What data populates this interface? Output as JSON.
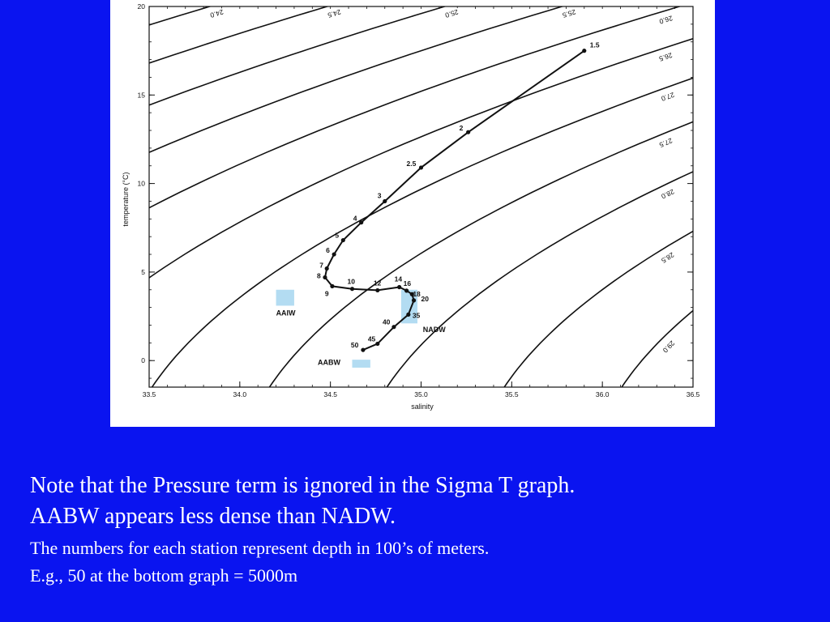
{
  "colors": {
    "background": "#0a14f0",
    "panel": "#ffffff",
    "ink": "#111111",
    "water_mass_box": "#b3dcf2",
    "caption_text": "#ffffff"
  },
  "chart_data": {
    "type": "line",
    "subtype": "temperature-salinity diagram with sigma-t isopycnals",
    "xlabel": "salinity",
    "ylabel": "temperature (°C)",
    "xlim": [
      33.5,
      36.5
    ],
    "ylim": [
      -1.5,
      20
    ],
    "x_ticks": [
      "33.5",
      "34.0",
      "34.5",
      "35.0",
      "35.5",
      "36.0",
      "36.5"
    ],
    "y_ticks": [
      "0",
      "5",
      "10",
      "15",
      "20"
    ],
    "grid": false,
    "isopycnals": [
      {
        "label": "24.0",
        "sigma": 24.0
      },
      {
        "label": "24.5",
        "sigma": 24.5
      },
      {
        "label": "25.0",
        "sigma": 25.0
      },
      {
        "label": "25.5",
        "sigma": 25.5
      },
      {
        "label": "26.0",
        "sigma": 26.0
      },
      {
        "label": "26.5",
        "sigma": 26.5
      },
      {
        "label": "27.0",
        "sigma": 27.0
      },
      {
        "label": "27.5",
        "sigma": 27.5
      },
      {
        "label": "28.0",
        "sigma": 28.0
      },
      {
        "label": "28.5",
        "sigma": 28.5
      },
      {
        "label": "29.0",
        "sigma": 29.0
      }
    ],
    "series": [
      {
        "points": [
          {
            "label": "1.5",
            "salinity": 35.9,
            "temperature": 17.5
          },
          {
            "label": "2",
            "salinity": 35.26,
            "temperature": 12.9
          },
          {
            "label": "2.5",
            "salinity": 35.0,
            "temperature": 10.9
          },
          {
            "label": "3",
            "salinity": 34.8,
            "temperature": 9.0
          },
          {
            "label": "4",
            "salinity": 34.67,
            "temperature": 7.8
          },
          {
            "label": "5",
            "salinity": 34.57,
            "temperature": 6.8
          },
          {
            "label": "6",
            "salinity": 34.52,
            "temperature": 6.0
          },
          {
            "label": "7",
            "salinity": 34.48,
            "temperature": 5.2
          },
          {
            "label": "8",
            "salinity": 34.47,
            "temperature": 4.7
          },
          {
            "label": "9",
            "salinity": 34.51,
            "temperature": 4.2
          },
          {
            "label": "10",
            "salinity": 34.62,
            "temperature": 4.05
          },
          {
            "label": "12",
            "salinity": 34.76,
            "temperature": 3.97
          },
          {
            "label": "14",
            "salinity": 34.88,
            "temperature": 4.15
          },
          {
            "label": "16",
            "salinity": 34.92,
            "temperature": 3.95
          },
          {
            "label": "18",
            "salinity": 34.95,
            "temperature": 3.75
          },
          {
            "label": "20",
            "salinity": 34.96,
            "temperature": 3.4
          },
          {
            "label": "35",
            "salinity": 34.93,
            "temperature": 2.6
          },
          {
            "label": "40",
            "salinity": 34.85,
            "temperature": 1.9
          },
          {
            "label": "45",
            "salinity": 34.76,
            "temperature": 0.95
          },
          {
            "label": "50",
            "salinity": 34.68,
            "temperature": 0.6
          }
        ]
      }
    ],
    "water_masses": [
      {
        "label": "AAIW",
        "salinity_range": [
          34.2,
          34.3
        ],
        "temperature_range": [
          3.1,
          4.0
        ]
      },
      {
        "label": "NADW",
        "salinity_range": [
          34.89,
          34.98
        ],
        "temperature_range": [
          2.1,
          4.0
        ]
      },
      {
        "label": "AABW",
        "salinity_range": [
          34.62,
          34.72
        ],
        "temperature_range": [
          -0.4,
          0.05
        ]
      }
    ]
  },
  "caption": {
    "line1": "Note that the Pressure term is ignored in the Sigma T graph.",
    "line2": "AABW appears less dense than NADW.",
    "line3": "The numbers for each station represent depth in 100’s of meters.",
    "line4": "E.g., 50 at the bottom graph = 5000m"
  }
}
